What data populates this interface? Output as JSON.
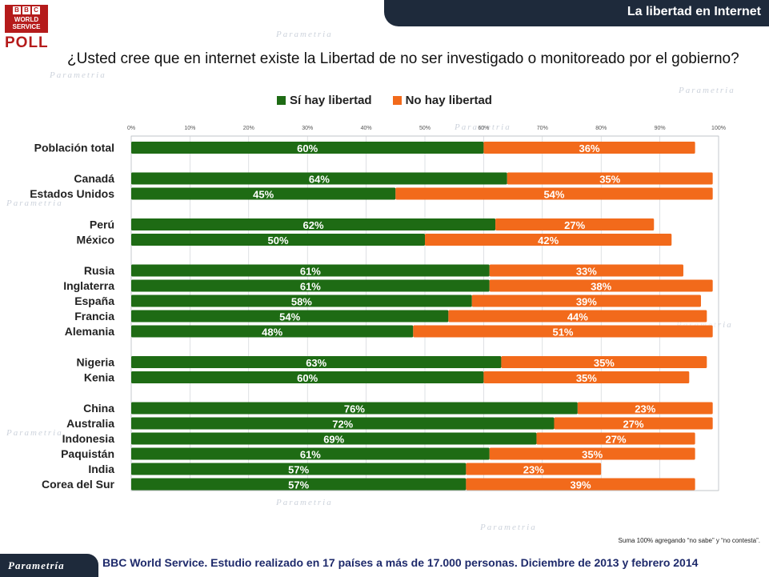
{
  "header": {
    "title": "La libertad en Internet"
  },
  "logo": {
    "letters": [
      "B",
      "B",
      "C"
    ],
    "line1": "WORLD",
    "line2": "SERVICE",
    "poll": "POLL"
  },
  "question": "¿Usted cree que en internet existe la Libertad de no ser investigado o monitoreado por el gobierno?",
  "footer": {
    "note": "Suma 100%  agregando “no sabe” y “no contesta”.",
    "source": "BBC World Service. Estudio realizado en 17 países  a más de 17.000 personas. Diciembre de 2013 y febrero 2014",
    "brand": "Parametría"
  },
  "colors": {
    "si": "#1e6b14",
    "no": "#f26a1b",
    "header": "#1e2a3b"
  },
  "chart_data": {
    "type": "bar",
    "orientation": "horizontal",
    "stacked": true,
    "xlim": [
      0,
      100
    ],
    "ticks": [
      "0%",
      "10%",
      "20%",
      "30%",
      "40%",
      "50%",
      "60%",
      "70%",
      "80%",
      "90%",
      "100%"
    ],
    "grid": true,
    "legend_position": "top-center",
    "series": [
      {
        "name": "Sí hay libertad",
        "values": [
          60,
          64,
          45,
          62,
          50,
          61,
          61,
          58,
          54,
          48,
          63,
          60,
          76,
          72,
          69,
          61,
          57,
          57
        ]
      },
      {
        "name": "No hay libertad",
        "values": [
          36,
          35,
          54,
          27,
          42,
          33,
          38,
          39,
          44,
          51,
          35,
          35,
          23,
          27,
          27,
          35,
          23,
          39
        ]
      }
    ],
    "groups": [
      [
        "Población total"
      ],
      [
        "Canadá",
        "Estados Unidos"
      ],
      [
        "Perú",
        "México"
      ],
      [
        "Rusia",
        "Inglaterra",
        "España",
        "Francia",
        "Alemania"
      ],
      [
        "Nigeria",
        "Kenia"
      ],
      [
        "China",
        "Australia",
        "Indonesia",
        "Paquistán",
        "India",
        "Corea del Sur"
      ]
    ]
  }
}
